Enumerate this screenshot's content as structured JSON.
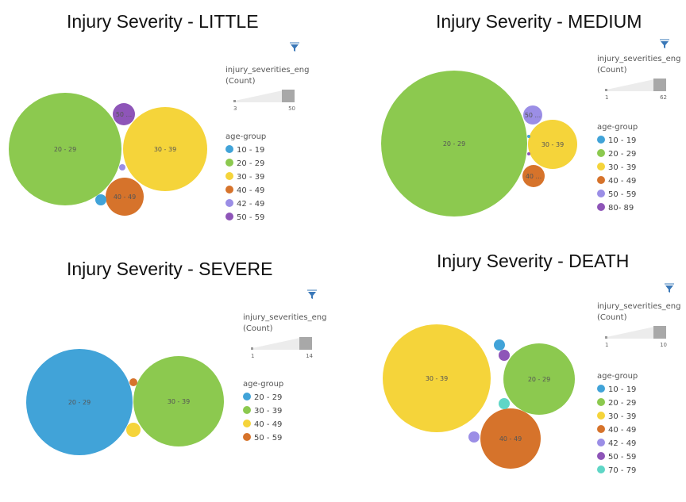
{
  "chart_data": [
    {
      "type": "bubble",
      "title": "Injury Severity - LITTLE",
      "size_legend": {
        "title_line1": "injury_severities_eng",
        "title_line2": "(Count)",
        "min": 3,
        "max": 50
      },
      "legend_title": "age-group",
      "legend": [
        {
          "name": "10 - 19",
          "color": "#41a3d8"
        },
        {
          "name": "20 - 29",
          "color": "#8cc94f"
        },
        {
          "name": "30 - 39",
          "color": "#f5d43a"
        },
        {
          "name": "40 - 49",
          "color": "#d6732b"
        },
        {
          "name": "42 - 49",
          "color": "#9b8ee6"
        },
        {
          "name": "50 - 59",
          "color": "#8e55b8"
        }
      ],
      "bubbles": [
        {
          "category": "20 - 29",
          "label": "20 - 29",
          "color": "#8cc94f"
        },
        {
          "category": "30 - 39",
          "label": "30 - 39",
          "color": "#f5d43a"
        },
        {
          "category": "40 - 49",
          "label": "40 - 49",
          "color": "#d6732b"
        },
        {
          "category": "50 - 59",
          "label": "50 ...",
          "color": "#8e55b8"
        },
        {
          "category": "10 - 19",
          "label": "",
          "color": "#41a3d8"
        },
        {
          "category": "42 - 49",
          "label": "",
          "color": "#9b8ee6"
        }
      ]
    },
    {
      "type": "bubble",
      "title": "Injury Severity - MEDIUM",
      "size_legend": {
        "title_line1": "injury_severities_eng",
        "title_line2": "(Count)",
        "min": 1,
        "max": 62
      },
      "legend_title": "age-group",
      "legend": [
        {
          "name": "10 - 19",
          "color": "#41a3d8"
        },
        {
          "name": "20 - 29",
          "color": "#8cc94f"
        },
        {
          "name": "30 - 39",
          "color": "#f5d43a"
        },
        {
          "name": "40 - 49",
          "color": "#d6732b"
        },
        {
          "name": "50 - 59",
          "color": "#9b8ee6"
        },
        {
          "name": "80- 89",
          "color": "#8e55b8"
        }
      ],
      "bubbles": [
        {
          "category": "20 - 29",
          "label": "20 - 29",
          "color": "#8cc94f"
        },
        {
          "category": "30 - 39",
          "label": "30 - 39",
          "color": "#f5d43a"
        },
        {
          "category": "50 - 59",
          "label": "50 ...",
          "color": "#9b8ee6"
        },
        {
          "category": "40 - 49",
          "label": "40 ...",
          "color": "#d6732b"
        },
        {
          "category": "10 - 19",
          "label": "",
          "color": "#41a3d8"
        },
        {
          "category": "80- 89",
          "label": "",
          "color": "#8e55b8"
        }
      ]
    },
    {
      "type": "bubble",
      "title": "Injury Severity - SEVERE",
      "size_legend": {
        "title_line1": "injury_severities_eng",
        "title_line2": "(Count)",
        "min": 1,
        "max": 14
      },
      "legend_title": "age-group",
      "legend": [
        {
          "name": "20 - 29",
          "color": "#41a3d8"
        },
        {
          "name": "30 - 39",
          "color": "#8cc94f"
        },
        {
          "name": "40 - 49",
          "color": "#f5d43a"
        },
        {
          "name": "50 - 59",
          "color": "#d6732b"
        }
      ],
      "bubbles": [
        {
          "category": "20 - 29",
          "label": "20 - 29",
          "color": "#41a3d8"
        },
        {
          "category": "30 - 39",
          "label": "30 - 39",
          "color": "#8cc94f"
        },
        {
          "category": "40 - 49",
          "label": "",
          "color": "#f5d43a"
        },
        {
          "category": "50 - 59",
          "label": "",
          "color": "#d6732b"
        }
      ]
    },
    {
      "type": "bubble",
      "title": "Injury Severity - DEATH",
      "size_legend": {
        "title_line1": "injury_severities_eng",
        "title_line2": "(Count)",
        "min": 1,
        "max": 10
      },
      "legend_title": "age-group",
      "legend": [
        {
          "name": "10 - 19",
          "color": "#41a3d8"
        },
        {
          "name": "20 - 29",
          "color": "#8cc94f"
        },
        {
          "name": "30 - 39",
          "color": "#f5d43a"
        },
        {
          "name": "40 - 49",
          "color": "#d6732b"
        },
        {
          "name": "42 - 49",
          "color": "#9b8ee6"
        },
        {
          "name": "50 - 59",
          "color": "#8e55b8"
        },
        {
          "name": "70 - 79",
          "color": "#5fd6c6"
        }
      ],
      "bubbles": [
        {
          "category": "30 - 39",
          "label": "30 - 39",
          "color": "#f5d43a"
        },
        {
          "category": "20 - 29",
          "label": "20 - 29",
          "color": "#8cc94f"
        },
        {
          "category": "40 - 49",
          "label": "40 - 49",
          "color": "#d6732b"
        },
        {
          "category": "10 - 19",
          "label": "",
          "color": "#41a3d8"
        },
        {
          "category": "50 - 59",
          "label": "",
          "color": "#8e55b8"
        },
        {
          "category": "70 - 79",
          "label": "",
          "color": "#5fd6c6"
        },
        {
          "category": "42 - 49",
          "label": "",
          "color": "#9b8ee6"
        }
      ]
    }
  ]
}
